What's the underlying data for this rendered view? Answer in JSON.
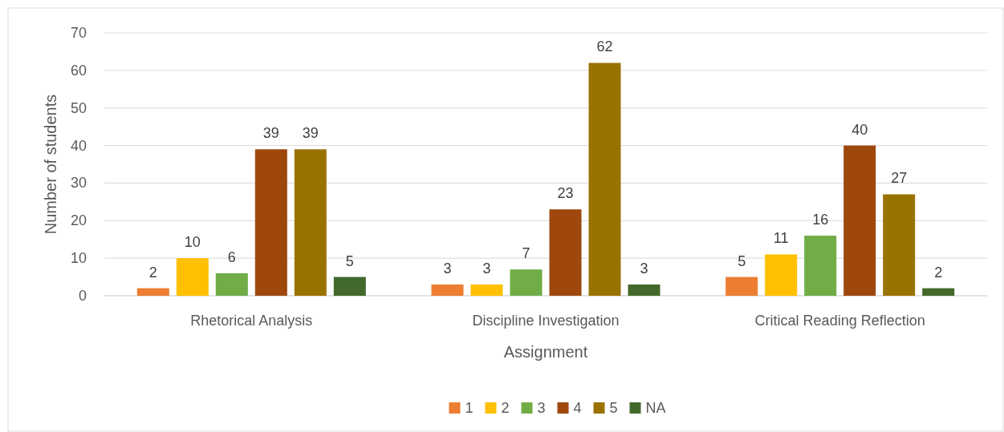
{
  "chart_data": {
    "type": "bar",
    "xlabel": "Assignment",
    "ylabel": "Number of students",
    "categories": [
      "Rhetorical Analysis",
      "Discipline Investigation",
      "Critical Reading Reflection"
    ],
    "series": [
      {
        "name": "1",
        "color": "#ed7d31",
        "values": [
          2,
          3,
          5
        ]
      },
      {
        "name": "2",
        "color": "#ffc000",
        "values": [
          10,
          3,
          11
        ]
      },
      {
        "name": "3",
        "color": "#70ad47",
        "values": [
          6,
          7,
          16
        ]
      },
      {
        "name": "4",
        "color": "#9e480e",
        "values": [
          39,
          23,
          40
        ]
      },
      {
        "name": "5",
        "color": "#997300",
        "values": [
          39,
          62,
          27
        ]
      },
      {
        "name": "NA",
        "color": "#43682b",
        "values": [
          5,
          3,
          2
        ]
      }
    ],
    "ylim": [
      0,
      70
    ],
    "yticks": [
      0,
      10,
      20,
      30,
      40,
      50,
      60,
      70
    ],
    "grid": "y",
    "legend": "bottom",
    "data_labels": true
  }
}
